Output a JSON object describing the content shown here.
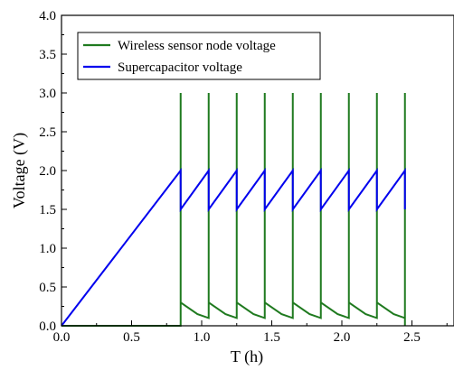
{
  "chart_data": {
    "type": "line",
    "title": "",
    "xlabel": "T (h)",
    "ylabel": "Voltage (V)",
    "xlim": [
      0.0,
      2.8
    ],
    "ylim": [
      0.0,
      4.0
    ],
    "x_ticks": [
      0.0,
      0.5,
      1.0,
      1.5,
      2.0,
      2.5
    ],
    "x_tick_labels": [
      "0.0",
      "0.5",
      "1.0",
      "1.5",
      "2.0",
      "2.5"
    ],
    "y_ticks": [
      0.0,
      0.5,
      1.0,
      1.5,
      2.0,
      2.5,
      3.0,
      3.5,
      4.0
    ],
    "y_tick_labels": [
      "0.0",
      "0.5",
      "1.0",
      "1.5",
      "2.0",
      "2.5",
      "3.0",
      "3.5",
      "4.0"
    ],
    "grid": false,
    "legend_position": "top-left",
    "series": [
      {
        "name": "Wireless sensor node voltage",
        "color": "#1f7a1f",
        "x": [
          0.0,
          0.85,
          0.85,
          0.85,
          0.85,
          0.97,
          1.05,
          1.05,
          1.05,
          1.05,
          1.17,
          1.25,
          1.25,
          1.25,
          1.25,
          1.37,
          1.45,
          1.45,
          1.45,
          1.45,
          1.57,
          1.65,
          1.65,
          1.65,
          1.65,
          1.77,
          1.85,
          1.85,
          1.85,
          1.85,
          1.97,
          2.05,
          2.05,
          2.05,
          2.05,
          2.17,
          2.25,
          2.25,
          2.25,
          2.25,
          2.37,
          2.45,
          2.45,
          2.45
        ],
        "y": [
          0.0,
          0.0,
          3.0,
          0.3,
          0.3,
          0.15,
          0.1,
          3.0,
          0.3,
          0.3,
          0.15,
          0.1,
          3.0,
          0.3,
          0.3,
          0.15,
          0.1,
          3.0,
          0.3,
          0.3,
          0.15,
          0.1,
          3.0,
          0.3,
          0.3,
          0.15,
          0.1,
          3.0,
          0.3,
          0.3,
          0.15,
          0.1,
          3.0,
          0.3,
          0.3,
          0.15,
          0.1,
          3.0,
          0.3,
          0.3,
          0.15,
          0.1,
          3.0,
          0.0
        ]
      },
      {
        "name": "Supercapacitor voltage",
        "color": "#0000ee",
        "x": [
          0.0,
          0.85,
          0.85,
          1.05,
          1.05,
          1.25,
          1.25,
          1.45,
          1.45,
          1.65,
          1.65,
          1.85,
          1.85,
          2.05,
          2.05,
          2.25,
          2.25,
          2.45,
          2.45
        ],
        "y": [
          0.0,
          2.0,
          1.5,
          2.0,
          1.5,
          2.0,
          1.5,
          2.0,
          1.5,
          2.0,
          1.5,
          2.0,
          1.5,
          2.0,
          1.5,
          2.0,
          1.5,
          2.0,
          1.5
        ]
      }
    ]
  }
}
